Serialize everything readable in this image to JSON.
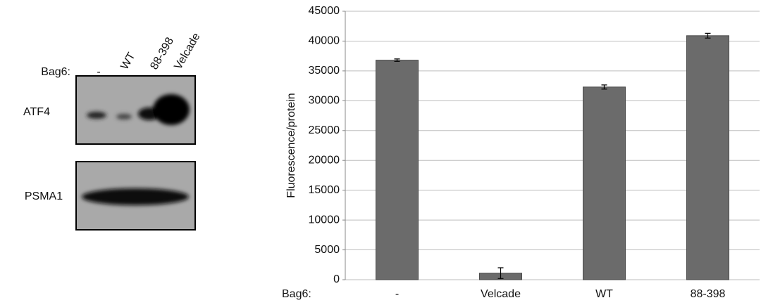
{
  "blot": {
    "row_label": "Bag6:",
    "lanes": [
      "-",
      "WT",
      "88-398",
      "Velcade"
    ],
    "bands": [
      "ATF4",
      "PSMA1"
    ]
  },
  "chart_data": {
    "type": "bar",
    "ylabel": "Fluorescence/protein",
    "xlabel": "Bag6:",
    "categories": [
      "-",
      "Velcade",
      "WT",
      "88-398"
    ],
    "values": [
      36800,
      1100,
      32300,
      40900
    ],
    "errors": [
      200,
      900,
      350,
      400
    ],
    "color": "#6b6b6b",
    "ylim": [
      0,
      45000
    ],
    "yticks": [
      0,
      5000,
      10000,
      15000,
      20000,
      25000,
      30000,
      35000,
      40000,
      45000
    ],
    "grid": true
  }
}
